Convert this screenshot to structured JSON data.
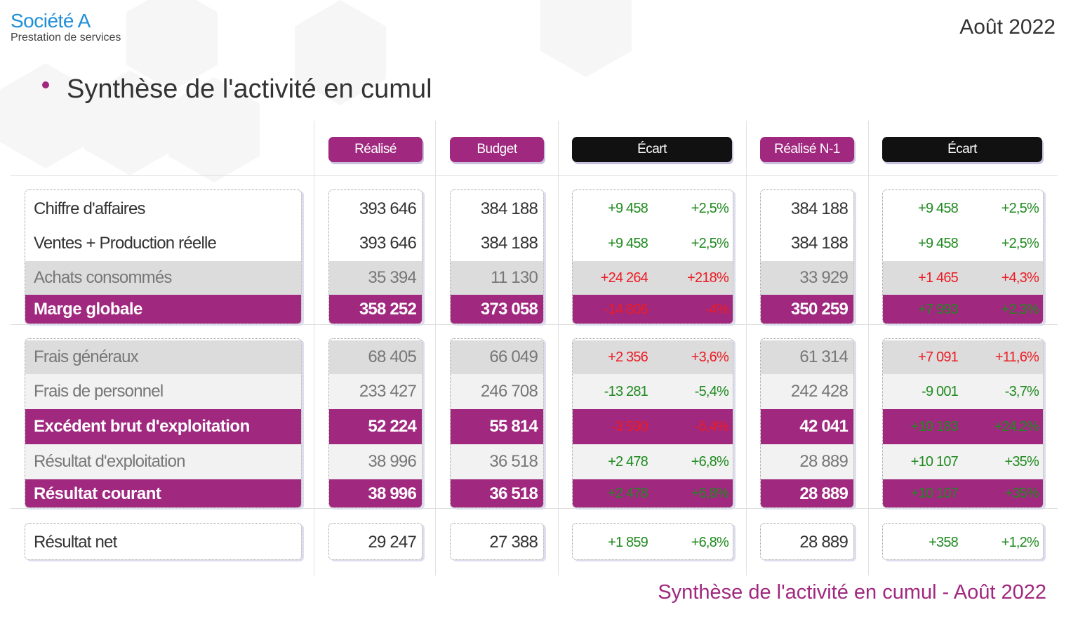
{
  "header": {
    "company": "Société A",
    "subtitle": "Prestation de services",
    "period": "Août 2022"
  },
  "title": "Synthèse de l'activité en cumul",
  "footer": "Synthèse de l'activité en cumul - Août 2022",
  "colors": {
    "brand": "#a0287f",
    "company": "#1e8fd8",
    "positive": "#1f8a1f",
    "negative": "#ec1c24"
  },
  "columns": [
    "Réalisé",
    "Budget",
    "Écart",
    "Réalisé N-1",
    "Écart"
  ],
  "rows": [
    {
      "label": "Chiffre d'affaires",
      "style": "white",
      "realise": "393 646",
      "budget": "384 188",
      "ecart_b": "+9 458",
      "ecart_b_pct": "+2,5%",
      "ecart_b_tone": "green",
      "n1": "384 188",
      "ecart_n1": "+9 458",
      "ecart_n1_pct": "+2,5%",
      "ecart_n1_tone": "green"
    },
    {
      "label": "Ventes + Production réelle",
      "style": "white",
      "realise": "393 646",
      "budget": "384 188",
      "ecart_b": "+9 458",
      "ecart_b_pct": "+2,5%",
      "ecart_b_tone": "green",
      "n1": "384 188",
      "ecart_n1": "+9 458",
      "ecart_n1_pct": "+2,5%",
      "ecart_n1_tone": "green"
    },
    {
      "label": "Achats consommés",
      "style": "gray",
      "realise": "35 394",
      "budget": "11 130",
      "ecart_b": "+24 264",
      "ecart_b_pct": "+218%",
      "ecart_b_tone": "red",
      "n1": "33 929",
      "ecart_n1": "+1 465",
      "ecart_n1_pct": "+4,3%",
      "ecart_n1_tone": "red"
    },
    {
      "label": "Marge globale",
      "style": "mag",
      "realise": "358 252",
      "budget": "373 058",
      "ecart_b": "-14 806",
      "ecart_b_pct": "-4%",
      "ecart_b_tone": "red",
      "n1": "350 259",
      "ecart_n1": "+7 993",
      "ecart_n1_pct": "+2,3%",
      "ecart_n1_tone": "green"
    },
    {
      "label": "Frais généraux",
      "style": "gray",
      "realise": "68 405",
      "budget": "66 049",
      "ecart_b": "+2 356",
      "ecart_b_pct": "+3,6%",
      "ecart_b_tone": "red",
      "n1": "61 314",
      "ecart_n1": "+7 091",
      "ecart_n1_pct": "+11,6%",
      "ecart_n1_tone": "red"
    },
    {
      "label": "Frais de personnel",
      "style": "light",
      "realise": "233 427",
      "budget": "246 708",
      "ecart_b": "-13 281",
      "ecart_b_pct": "-5,4%",
      "ecart_b_tone": "green",
      "n1": "242 428",
      "ecart_n1": "-9 001",
      "ecart_n1_pct": "-3,7%",
      "ecart_n1_tone": "green"
    },
    {
      "label": "Excédent brut d'exploitation",
      "style": "mag",
      "realise": "52 224",
      "budget": "55 814",
      "ecart_b": "-3 590",
      "ecart_b_pct": "-6,4%",
      "ecart_b_tone": "red",
      "n1": "42 041",
      "ecart_n1": "+10 183",
      "ecart_n1_pct": "+24,2%",
      "ecart_n1_tone": "green"
    },
    {
      "label": "Résultat d'exploitation",
      "style": "light",
      "realise": "38 996",
      "budget": "36 518",
      "ecart_b": "+2 478",
      "ecart_b_pct": "+6,8%",
      "ecart_b_tone": "green",
      "n1": "28 889",
      "ecart_n1": "+10 107",
      "ecart_n1_pct": "+35%",
      "ecart_n1_tone": "green"
    },
    {
      "label": "Résultat courant",
      "style": "mag",
      "realise": "38 996",
      "budget": "36 518",
      "ecart_b": "+2 478",
      "ecart_b_pct": "+6,8%",
      "ecart_b_tone": "green",
      "n1": "28 889",
      "ecart_n1": "+10 107",
      "ecart_n1_pct": "+35%",
      "ecart_n1_tone": "green"
    },
    {
      "label": "Résultat net",
      "style": "white",
      "realise": "29 247",
      "budget": "27 388",
      "ecart_b": "+1 859",
      "ecart_b_pct": "+6,8%",
      "ecart_b_tone": "green",
      "n1": "28 889",
      "ecart_n1": "+358",
      "ecart_n1_pct": "+1,2%",
      "ecart_n1_tone": "green"
    }
  ]
}
